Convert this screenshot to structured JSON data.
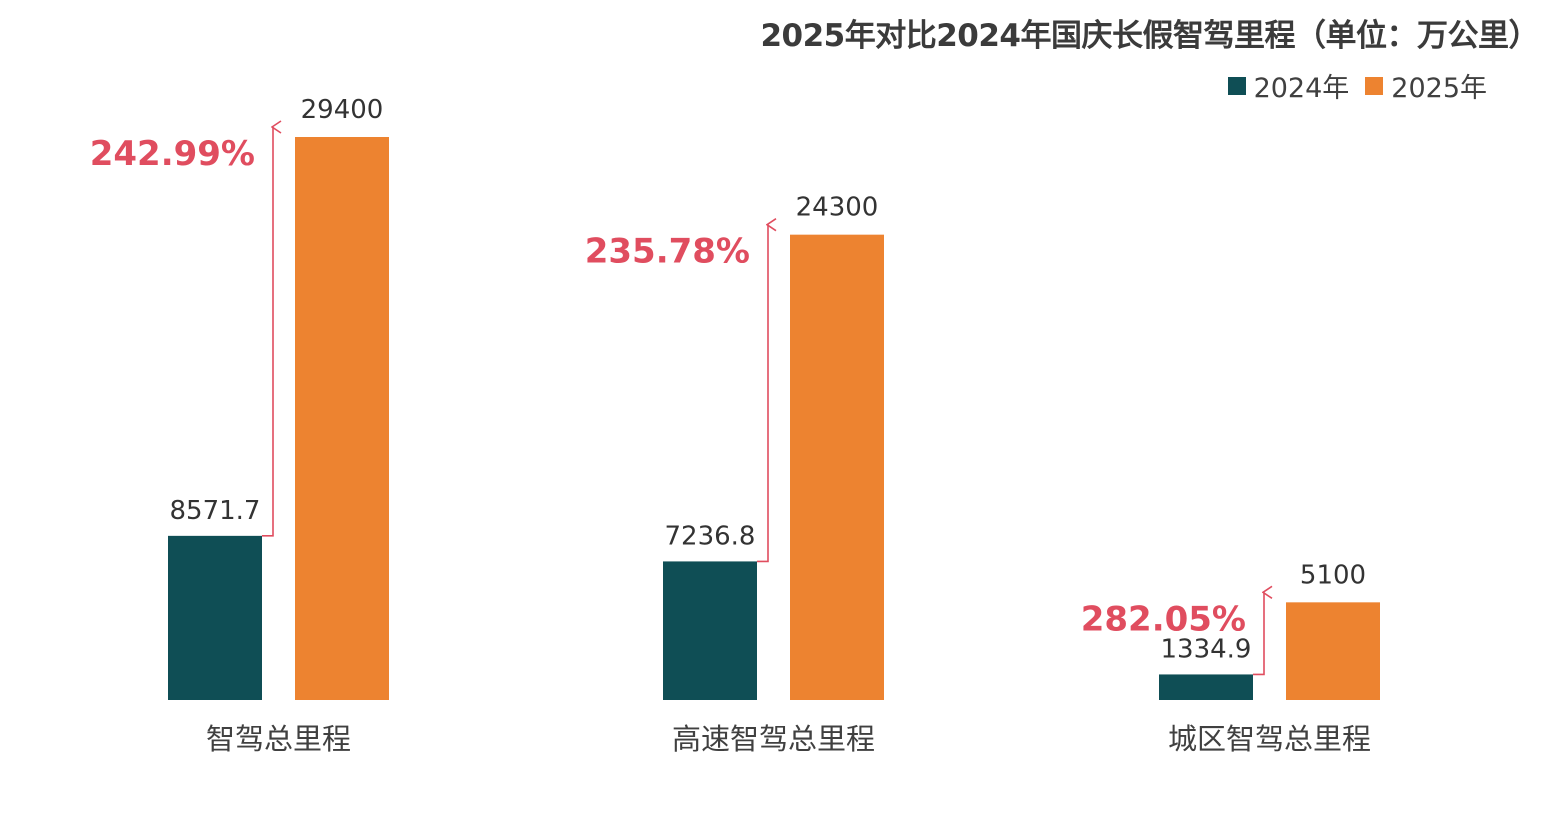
{
  "chart_data": {
    "type": "bar",
    "title": "2025年对比2024年国庆长假智驾里程（单位：万公里）",
    "categories": [
      "智驾总里程",
      "高速智驾总里程",
      "城区智驾总里程"
    ],
    "series": [
      {
        "name": "2024年",
        "values": [
          8571.7,
          7236.8,
          1334.9
        ],
        "value_labels": [
          "8571.7",
          "7236.8",
          "1334.9"
        ],
        "color": "#0f4e55"
      },
      {
        "name": "2025年",
        "values": [
          29400,
          24300,
          5100
        ],
        "value_labels": [
          "29400",
          "24300",
          "5100"
        ],
        "color": "#ed8330"
      }
    ],
    "growth_labels": [
      "242.99%",
      "235.78%",
      "282.05%"
    ],
    "growth_color": "#e04d5f",
    "ylim": [
      0,
      29400
    ],
    "grid": false,
    "legend_position": "top-right"
  }
}
